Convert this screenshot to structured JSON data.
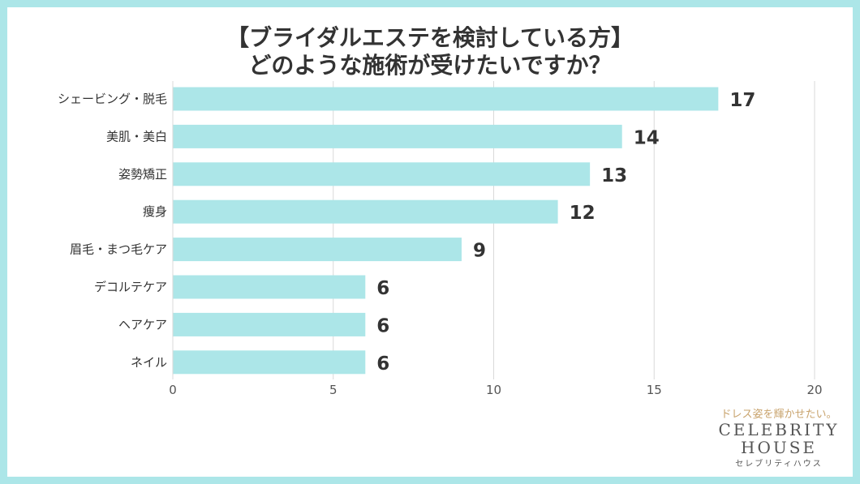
{
  "title_lines": [
    "【ブライダルエステを検討している方】",
    "どのような施術が受けたいですか？"
  ],
  "colors": {
    "bar": "#ace6e8",
    "frame": "#ace6e8",
    "grid": "#d9d9d9",
    "text": "#333333",
    "axis_text": "#555555",
    "tagline": "#c9a46e"
  },
  "chart_data": {
    "type": "bar",
    "orientation": "horizontal",
    "categories": [
      "シェービング・脱毛",
      "美肌・美白",
      "姿勢矯正",
      "痩身",
      "眉毛・まつ毛ケア",
      "デコルテケア",
      "ヘアケア",
      "ネイル"
    ],
    "values": [
      17,
      14,
      13,
      12,
      9,
      6,
      6,
      6
    ],
    "xlim": [
      0,
      20
    ],
    "xticks": [
      0,
      5,
      10,
      15,
      20
    ],
    "grid": true,
    "data_labels": true,
    "legend": "none"
  },
  "brand": {
    "tagline": "ドレス姿を輝かせたい。",
    "line1": "CELEBRITY",
    "line2": "HOUSE",
    "kana": "セレブリティハウス"
  }
}
